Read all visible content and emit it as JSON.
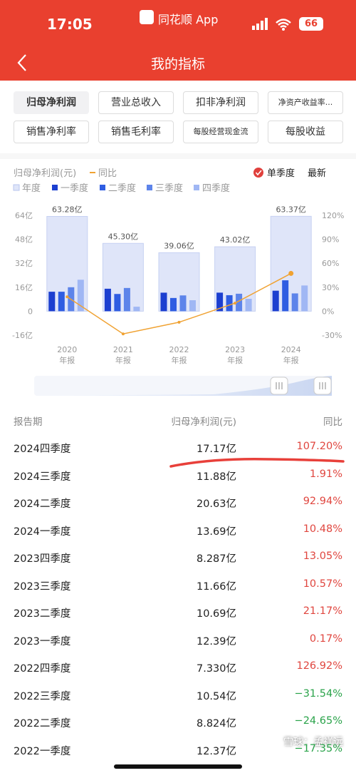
{
  "status_bar": {
    "time": "17:05",
    "app": "同花顺 App",
    "battery": "66"
  },
  "header": {
    "title": "我的指标"
  },
  "tabs": {
    "selected": 0,
    "items": [
      "归母净利润",
      "营业总收入",
      "扣非净利润",
      "净资产收益率...",
      "销售净利率",
      "销售毛利率",
      "每股经营现金流",
      "每股收益"
    ]
  },
  "chart_data": {
    "type": "bar",
    "ylabel": "归母净利润(元)",
    "toggle": {
      "label": "单季度",
      "checked": true
    },
    "latest": "最新",
    "categories": [
      [
        "2020",
        "年报"
      ],
      [
        "2021",
        "年报"
      ],
      [
        "2022",
        "年报"
      ],
      [
        "2023",
        "年报"
      ],
      [
        "2024",
        "年报"
      ]
    ],
    "ylim": [
      -16,
      64
    ],
    "yticks": [
      {
        "value": 64,
        "label": "64亿"
      },
      {
        "value": 48,
        "label": "48亿"
      },
      {
        "value": 32,
        "label": "32亿"
      },
      {
        "value": 16,
        "label": "16亿"
      },
      0,
      {
        "value": -16,
        "label": "-16亿"
      }
    ],
    "y2lim": [
      -30,
      120
    ],
    "y2ticks": [
      {
        "value": 120,
        "label": "120%"
      },
      {
        "value": 90,
        "label": "90%"
      },
      {
        "value": 60,
        "label": "60%"
      },
      {
        "value": 30,
        "label": "30%"
      },
      {
        "value": 0,
        "label": "0%"
      },
      {
        "value": -30,
        "label": "-30%"
      }
    ],
    "grid": false,
    "series": [
      {
        "name": "年度",
        "color": "#dfe5f9",
        "values": [
          63.28,
          45.3,
          39.06,
          43.02,
          63.37
        ],
        "value_labels": [
          "63.28亿",
          "45.30亿",
          "39.06亿",
          "43.02亿",
          "63.37亿"
        ]
      },
      {
        "name": "一季度",
        "color": "#1c3fd0",
        "values": [
          13,
          15,
          12.37,
          12.39,
          13.69
        ]
      },
      {
        "name": "二季度",
        "color": "#2f5de2",
        "values": [
          13,
          11.5,
          8.824,
          10.69,
          20.63
        ]
      },
      {
        "name": "三季度",
        "color": "#5d84ea",
        "values": [
          16,
          15.5,
          10.54,
          11.66,
          11.88
        ]
      },
      {
        "name": "四季度",
        "color": "#a0b7f4",
        "values": [
          21,
          3,
          7.33,
          8.287,
          17.17
        ]
      },
      {
        "name": "同比",
        "color": "#f0a232",
        "axis": "y2",
        "values": [
          18,
          -28.4,
          -13.8,
          10.1,
          47.3
        ]
      }
    ]
  },
  "table": {
    "columns": [
      "报告期",
      "归母净利润(元)",
      "同比"
    ],
    "rows": [
      [
        "2024四季度",
        "17.17亿",
        "107.20%"
      ],
      [
        "2024三季度",
        "11.88亿",
        "1.91%"
      ],
      [
        "2024二季度",
        "20.63亿",
        "92.94%"
      ],
      [
        "2024一季度",
        "13.69亿",
        "10.48%"
      ],
      [
        "2023四季度",
        "8.287亿",
        "13.05%"
      ],
      [
        "2023三季度",
        "11.66亿",
        "10.57%"
      ],
      [
        "2023二季度",
        "10.69亿",
        "21.17%"
      ],
      [
        "2023一季度",
        "12.39亿",
        "0.17%"
      ],
      [
        "2022四季度",
        "7.330亿",
        "126.92%"
      ],
      [
        "2022三季度",
        "10.54亿",
        "−31.54%"
      ],
      [
        "2022二季度",
        "8.824亿",
        "−24.65%"
      ],
      [
        "2022一季度",
        "12.37亿",
        "−17.35%"
      ]
    ],
    "yoy_colors": [
      "#e0463f",
      "#e0463f",
      "#e0463f",
      "#e0463f",
      "#e0463f",
      "#e0463f",
      "#e0463f",
      "#e0463f",
      "#e0463f",
      "#2aa34a",
      "#2aa34a",
      "#2aa34a"
    ]
  },
  "watermark": "雪球：孟祥远"
}
